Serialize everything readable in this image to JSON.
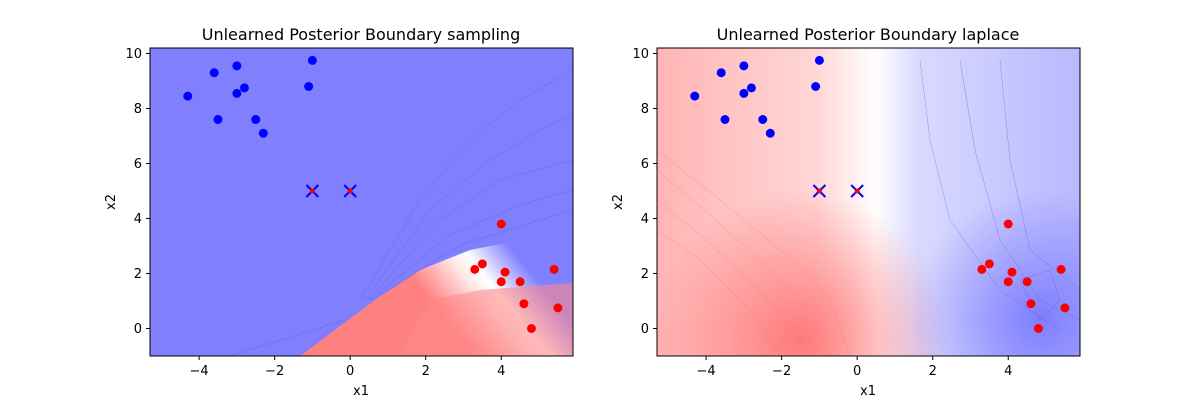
{
  "chart_data": [
    {
      "type": "scatter",
      "title": "Unlearned Posterior Boundary sampling",
      "xlabel": "x1",
      "ylabel": "x2",
      "xlim": [
        -5.3,
        5.9
      ],
      "ylim": [
        -1.0,
        10.2
      ],
      "xticks": [
        -4,
        -2,
        0,
        2,
        4
      ],
      "yticks": [
        0,
        2,
        4,
        6,
        8,
        10
      ],
      "background": "posterior contour (blue top-left, red bottom-right)",
      "colors": {
        "class_blue": "#0000ff",
        "class_red": "#ff0000",
        "forget_marker": "#0000ff"
      },
      "series": [
        {
          "marker": "circle",
          "color": "#0000ff",
          "points": [
            [
              -4.3,
              8.45
            ],
            [
              -3.6,
              9.3
            ],
            [
              -3.5,
              7.6
            ],
            [
              -3.0,
              9.55
            ],
            [
              -3.0,
              8.55
            ],
            [
              -2.8,
              8.75
            ],
            [
              -2.5,
              7.6
            ],
            [
              -2.3,
              7.1
            ],
            [
              -1.1,
              8.8
            ],
            [
              -1.0,
              9.75
            ]
          ]
        },
        {
          "marker": "circle",
          "color": "#ff0000",
          "points": [
            [
              4.0,
              3.8
            ],
            [
              3.3,
              2.15
            ],
            [
              3.5,
              2.35
            ],
            [
              4.1,
              2.05
            ],
            [
              4.0,
              1.7
            ],
            [
              4.5,
              1.7
            ],
            [
              5.4,
              2.15
            ],
            [
              4.6,
              0.9
            ],
            [
              5.5,
              0.75
            ],
            [
              4.8,
              0.0
            ]
          ]
        },
        {
          "marker": "x",
          "color": "#0000ff",
          "points": [
            [
              -1.0,
              5.0
            ],
            [
              0.0,
              5.0
            ]
          ]
        }
      ]
    },
    {
      "type": "scatter",
      "title": "Unlearned Posterior Boundary laplace",
      "xlabel": "x1",
      "ylabel": "x2",
      "xlim": [
        -5.3,
        5.9
      ],
      "ylim": [
        -1.0,
        10.2
      ],
      "xticks": [
        -4,
        -2,
        0,
        2,
        4
      ],
      "yticks": [
        0,
        2,
        4,
        6,
        8,
        10
      ],
      "background": "posterior contour (red left, white middle, blue right)",
      "colors": {
        "class_blue": "#0000ff",
        "class_red": "#ff0000",
        "forget_marker": "#0000ff"
      },
      "series": [
        {
          "marker": "circle",
          "color": "#0000ff",
          "points": [
            [
              -4.3,
              8.45
            ],
            [
              -3.6,
              9.3
            ],
            [
              -3.5,
              7.6
            ],
            [
              -3.0,
              9.55
            ],
            [
              -3.0,
              8.55
            ],
            [
              -2.8,
              8.75
            ],
            [
              -2.5,
              7.6
            ],
            [
              -2.3,
              7.1
            ],
            [
              -1.1,
              8.8
            ],
            [
              -1.0,
              9.75
            ]
          ]
        },
        {
          "marker": "circle",
          "color": "#ff0000",
          "points": [
            [
              4.0,
              3.8
            ],
            [
              3.3,
              2.15
            ],
            [
              3.5,
              2.35
            ],
            [
              4.1,
              2.05
            ],
            [
              4.0,
              1.7
            ],
            [
              4.5,
              1.7
            ],
            [
              5.4,
              2.15
            ],
            [
              4.6,
              0.9
            ],
            [
              5.5,
              0.75
            ],
            [
              4.8,
              0.0
            ]
          ]
        },
        {
          "marker": "x",
          "color": "#0000ff",
          "points": [
            [
              -1.0,
              5.0
            ],
            [
              0.0,
              5.0
            ]
          ]
        }
      ]
    }
  ]
}
